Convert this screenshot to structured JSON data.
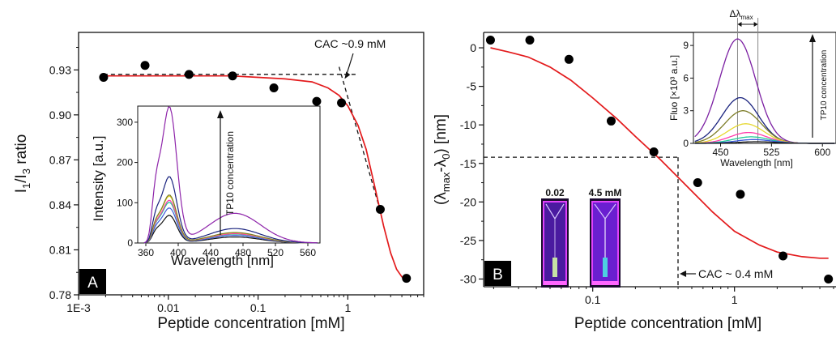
{
  "chart_data": [
    {
      "panel": "A",
      "type": "scatter",
      "xscale": "log",
      "xlim": [
        0.001,
        7
      ],
      "ylim": [
        0.78,
        0.955
      ],
      "xlabel": "Peptide concentration [mM]",
      "ylabel_parts": {
        "main": "I",
        "sub1": "1",
        "slash": "/I",
        "sub2": "3",
        "tail": " ratio"
      },
      "xticks": [
        {
          "value": 0.001,
          "label": "1E-3"
        },
        {
          "value": 0.01,
          "label": "0.01"
        },
        {
          "value": 0.1,
          "label": "0.1"
        },
        {
          "value": 1,
          "label": "1"
        }
      ],
      "yticks": [
        {
          "value": 0.78,
          "label": "0.78"
        },
        {
          "value": 0.81,
          "label": "0.81"
        },
        {
          "value": 0.84,
          "label": "0.84"
        },
        {
          "value": 0.87,
          "label": "0.87"
        },
        {
          "value": 0.9,
          "label": "0.90"
        },
        {
          "value": 0.93,
          "label": "0.93"
        }
      ],
      "points": [
        {
          "x": 0.0019,
          "y": 0.925
        },
        {
          "x": 0.0055,
          "y": 0.933
        },
        {
          "x": 0.017,
          "y": 0.927
        },
        {
          "x": 0.052,
          "y": 0.926
        },
        {
          "x": 0.15,
          "y": 0.918
        },
        {
          "x": 0.45,
          "y": 0.909
        },
        {
          "x": 0.85,
          "y": 0.908
        },
        {
          "x": 2.3,
          "y": 0.837
        },
        {
          "x": 4.5,
          "y": 0.791
        }
      ],
      "fit_curve": [
        [
          0.0019,
          0.926
        ],
        [
          0.01,
          0.926
        ],
        [
          0.05,
          0.926
        ],
        [
          0.1,
          0.925
        ],
        [
          0.2,
          0.924
        ],
        [
          0.4,
          0.922
        ],
        [
          0.6,
          0.918
        ],
        [
          0.8,
          0.913
        ],
        [
          1.0,
          0.906
        ],
        [
          1.3,
          0.893
        ],
        [
          1.6,
          0.877
        ],
        [
          2.0,
          0.852
        ],
        [
          2.5,
          0.826
        ],
        [
          3.0,
          0.808
        ],
        [
          3.5,
          0.797
        ],
        [
          4.0,
          0.792
        ],
        [
          4.5,
          0.79
        ]
      ],
      "dashed_lines": [
        [
          [
            0.0019,
            0.927
          ],
          [
            1.25,
            0.927
          ]
        ],
        [
          [
            0.8,
            0.932
          ],
          [
            2.2,
            0.84
          ]
        ]
      ],
      "annotation": "CAC ~0.9 mM",
      "annotation_arrow_to": [
        0.92,
        0.924
      ],
      "panel_label": "A",
      "inset": {
        "xlabel": "Wavelength [nm]",
        "ylabel": "Intensity [a.u.]",
        "xlim": [
          350,
          575
        ],
        "ylim": [
          0,
          340
        ],
        "xticks": [
          {
            "value": 360,
            "label": "360"
          },
          {
            "value": 400,
            "label": "400"
          },
          {
            "value": 440,
            "label": "440"
          },
          {
            "value": 480,
            "label": "480"
          },
          {
            "value": 520,
            "label": "520"
          },
          {
            "value": 560,
            "label": "560"
          }
        ],
        "yticks": [
          {
            "value": 0,
            "label": "0"
          },
          {
            "value": 100,
            "label": "100"
          },
          {
            "value": 200,
            "label": "200"
          },
          {
            "value": 300,
            "label": "300"
          }
        ],
        "arrow_label": "TP10 concentration",
        "series": [
          {
            "color": "#111111",
            "peak": 68
          },
          {
            "color": "#3b5bdb",
            "peak": 86
          },
          {
            "color": "#20c997",
            "peak": 100
          },
          {
            "color": "#ff3cac",
            "peak": 105
          },
          {
            "color": "#e6d830",
            "peak": 115
          },
          {
            "color": "#7d7d28",
            "peak": 118
          },
          {
            "color": "#1a237e",
            "peak": 163
          },
          {
            "color": "#8e24aa",
            "peak": 335
          }
        ]
      }
    },
    {
      "panel": "B",
      "type": "scatter",
      "xscale": "log",
      "xlim": [
        0.017,
        5.2
      ],
      "ylim": [
        -31,
        2
      ],
      "xlabel": "Peptide concentration [mM]",
      "ylabel_parts": {
        "open": "(λ",
        "sub1": "max",
        "mid": "-λ",
        "sub2": "0",
        "tail": ") [nm]"
      },
      "xticks": [
        {
          "value": 0.1,
          "label": "0.1"
        },
        {
          "value": 1,
          "label": "1"
        }
      ],
      "yticks": [
        {
          "value": 0,
          "label": "0"
        },
        {
          "value": -5,
          "label": "-5"
        },
        {
          "value": -10,
          "label": "-10"
        },
        {
          "value": -15,
          "label": "-15"
        },
        {
          "value": -20,
          "label": "-20"
        },
        {
          "value": -25,
          "label": "-25"
        },
        {
          "value": -30,
          "label": "-30"
        }
      ],
      "points": [
        {
          "x": 0.019,
          "y": 1
        },
        {
          "x": 0.036,
          "y": 1
        },
        {
          "x": 0.068,
          "y": -1.5
        },
        {
          "x": 0.135,
          "y": -9.5
        },
        {
          "x": 0.27,
          "y": -13.5
        },
        {
          "x": 0.55,
          "y": -17.5
        },
        {
          "x": 1.1,
          "y": -19
        },
        {
          "x": 2.2,
          "y": -27
        },
        {
          "x": 4.6,
          "y": -30
        }
      ],
      "fit_curve": [
        [
          0.019,
          0.0
        ],
        [
          0.025,
          -0.5
        ],
        [
          0.035,
          -1.2
        ],
        [
          0.05,
          -2.5
        ],
        [
          0.07,
          -4.2
        ],
        [
          0.1,
          -6.5
        ],
        [
          0.15,
          -9.3
        ],
        [
          0.2,
          -11.5
        ],
        [
          0.3,
          -14.5
        ],
        [
          0.4,
          -16.8
        ],
        [
          0.5,
          -18.6
        ],
        [
          0.7,
          -21.3
        ],
        [
          1.0,
          -23.8
        ],
        [
          1.5,
          -25.6
        ],
        [
          2.0,
          -26.5
        ],
        [
          3.0,
          -27.1
        ],
        [
          4.0,
          -27.3
        ],
        [
          4.6,
          -27.3
        ]
      ],
      "dashed_lines": [
        [
          [
            0.017,
            -14.2
          ],
          [
            0.4,
            -14.2
          ]
        ],
        [
          [
            0.4,
            -14.2
          ],
          [
            0.4,
            -31
          ]
        ]
      ],
      "annotation": "CAC ~ 0.4 mM",
      "panel_label": "B",
      "vial_labels": [
        "0.02",
        "4.5 mM"
      ],
      "inset": {
        "xlabel": "Wavelength [nm]",
        "ylabel": "Fluo [×10³ a.u.]",
        "xlim": [
          410,
          620
        ],
        "ylim": [
          0,
          10.2
        ],
        "xticks": [
          {
            "value": 450,
            "label": "450"
          },
          {
            "value": 525,
            "label": "525"
          },
          {
            "value": 600,
            "label": "600"
          }
        ],
        "yticks": [
          {
            "value": 0,
            "label": "0"
          },
          {
            "value": 3,
            "label": "3"
          },
          {
            "value": 6,
            "label": "6"
          },
          {
            "value": 9,
            "label": "9"
          }
        ],
        "arrow_label": "TP10 concentration",
        "delta_label": "Δλ",
        "delta_sub": "max",
        "vlines": [
          475,
          505
        ],
        "series": [
          {
            "color": "#7b1fa2",
            "peak": 9.6
          },
          {
            "color": "#1a237e",
            "peak": 4.2
          },
          {
            "color": "#7d7d28",
            "peak": 3.0
          },
          {
            "color": "#e6d830",
            "peak": 1.8
          },
          {
            "color": "#ff3cac",
            "peak": 1.0
          },
          {
            "color": "#20c997",
            "peak": 0.6
          },
          {
            "color": "#3b5bdb",
            "peak": 0.35
          },
          {
            "color": "#111111",
            "peak": 0.15
          }
        ]
      }
    }
  ]
}
